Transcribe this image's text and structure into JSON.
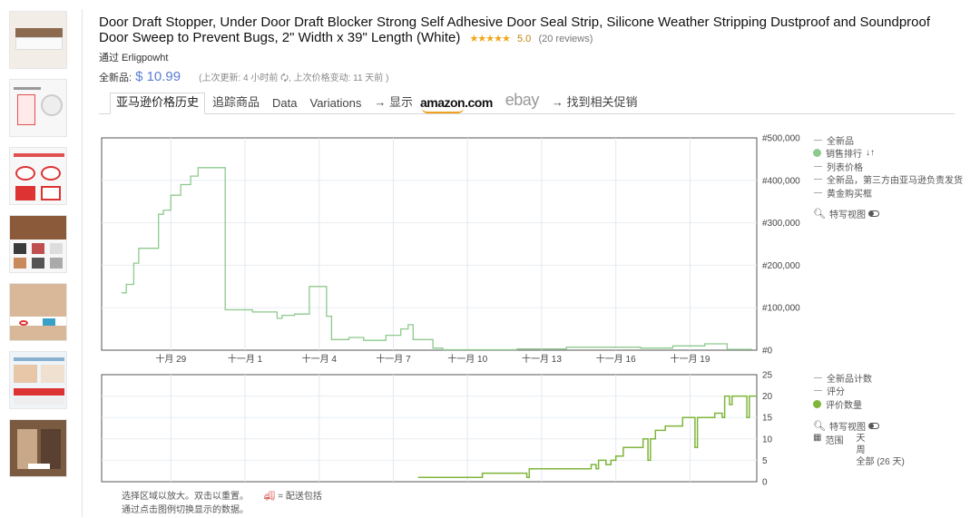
{
  "product": {
    "title": "Door Draft Stopper, Under Door Draft Blocker Strong Self Adhesive Door Seal Strip, Silicone Weather Stripping Dustproof and Soundproof Door Sweep to Prevent Bugs, 2\" Width x 39\" Length (White)",
    "stars": "★★★★★",
    "rating": "5.0",
    "reviews": "(20 reviews)",
    "seller": "通过 Erligpowht"
  },
  "price": {
    "label": "全新品:",
    "value": "$ 10.99",
    "update_info": "(上次更新:  4 小时前  🗘,  上次价格变动: 11 天前 )"
  },
  "tabs": [
    {
      "label": "亚马逊价格历史"
    },
    {
      "label": "追踪商品"
    },
    {
      "label": "Data"
    },
    {
      "label": "Variations"
    },
    {
      "label": "→ 显示"
    },
    {
      "label": "amazon.com"
    },
    {
      "label": "ebay"
    },
    {
      "label": "→ 找到相关促销"
    }
  ],
  "legend_top": {
    "items": [
      "全新品",
      "销售排行",
      "列表价格",
      "全新品，第三方由亚马逊负责发货",
      "黄金购买框"
    ],
    "special_view": "特写视图"
  },
  "legend_bottom": {
    "items": [
      "全新品计数",
      "评分",
      "评价数量"
    ],
    "special_view": "特写视图",
    "range_label": "范围",
    "range_options": [
      "天",
      "周",
      "全部 (26 天)"
    ]
  },
  "footnote": {
    "line1": "选择区域以放大。双击以重置。",
    "delivery": "= 配送包括",
    "line2": "通过点击图例切换显示的数据。"
  },
  "colors": {
    "sales_rank": "#8ec98e",
    "review_count": "#7fb53a",
    "price": "#5a7dd6"
  },
  "chart_data": [
    {
      "type": "line",
      "series_name": "销售排行",
      "x_ticks": [
        {
          "x": 2,
          "label": "十月 29"
        },
        {
          "x": 5,
          "label": "十一月 1"
        },
        {
          "x": 8,
          "label": "十一月 4"
        },
        {
          "x": 11,
          "label": "十一月 7"
        },
        {
          "x": 14,
          "label": "十一月 10"
        },
        {
          "x": 17,
          "label": "十一月 13"
        },
        {
          "x": 20,
          "label": "十一月 16"
        },
        {
          "x": 23,
          "label": "十一月 19"
        }
      ],
      "y_ticks": [
        "#500,000",
        "#400,000",
        "#300,000",
        "#200,000",
        "#100,000",
        "#0"
      ],
      "xlim": [
        -0.8,
        25.7
      ],
      "ylim": [
        0,
        500000
      ],
      "points": [
        [
          0,
          135000
        ],
        [
          0.2,
          135000
        ],
        [
          0.2,
          155000
        ],
        [
          0.5,
          155000
        ],
        [
          0.5,
          205000
        ],
        [
          0.7,
          205000
        ],
        [
          0.7,
          240000
        ],
        [
          1.5,
          240000
        ],
        [
          1.5,
          320000
        ],
        [
          1.7,
          320000
        ],
        [
          1.7,
          330000
        ],
        [
          2,
          330000
        ],
        [
          2,
          365000
        ],
        [
          2.4,
          365000
        ],
        [
          2.4,
          390000
        ],
        [
          2.8,
          390000
        ],
        [
          2.8,
          410000
        ],
        [
          3.1,
          410000
        ],
        [
          3.1,
          430000
        ],
        [
          4.2,
          430000
        ],
        [
          4.2,
          95000
        ],
        [
          5.3,
          95000
        ],
        [
          5.3,
          90000
        ],
        [
          6.3,
          90000
        ],
        [
          6.3,
          75000
        ],
        [
          6.5,
          75000
        ],
        [
          6.5,
          82000
        ],
        [
          7,
          82000
        ],
        [
          7,
          85000
        ],
        [
          7.6,
          85000
        ],
        [
          7.6,
          150000
        ],
        [
          8.3,
          150000
        ],
        [
          8.3,
          80000
        ],
        [
          8.5,
          80000
        ],
        [
          8.5,
          25000
        ],
        [
          9.2,
          25000
        ],
        [
          9.2,
          30000
        ],
        [
          9.8,
          30000
        ],
        [
          9.8,
          23000
        ],
        [
          10.7,
          23000
        ],
        [
          10.7,
          35000
        ],
        [
          11.3,
          35000
        ],
        [
          11.3,
          50000
        ],
        [
          11.6,
          50000
        ],
        [
          11.6,
          60000
        ],
        [
          11.8,
          60000
        ],
        [
          11.8,
          25000
        ],
        [
          12.6,
          25000
        ],
        [
          12.6,
          5000
        ],
        [
          13,
          5000
        ],
        [
          13,
          1000
        ],
        [
          16,
          1000
        ],
        [
          16,
          3000
        ],
        [
          18,
          3000
        ],
        [
          18,
          7000
        ],
        [
          21,
          7000
        ],
        [
          21,
          5000
        ],
        [
          22.3,
          5000
        ],
        [
          22.3,
          10000
        ],
        [
          23.6,
          10000
        ],
        [
          23.6,
          15000
        ],
        [
          24.5,
          15000
        ],
        [
          24.5,
          2000
        ],
        [
          25.5,
          2000
        ]
      ]
    },
    {
      "type": "line",
      "series_name": "评价数量",
      "y_ticks": [
        25,
        20,
        15,
        10,
        5,
        0
      ],
      "xlim": [
        -0.8,
        25.7
      ],
      "ylim": [
        0,
        25
      ],
      "points": [
        [
          12,
          1
        ],
        [
          14.6,
          1
        ],
        [
          14.6,
          2
        ],
        [
          16.4,
          2
        ],
        [
          16.4,
          1
        ],
        [
          16.5,
          1
        ],
        [
          16.5,
          3
        ],
        [
          19,
          3
        ],
        [
          19,
          4
        ],
        [
          19.2,
          4
        ],
        [
          19.2,
          3
        ],
        [
          19.3,
          3
        ],
        [
          19.3,
          5
        ],
        [
          19.6,
          5
        ],
        [
          19.6,
          4
        ],
        [
          19.8,
          4
        ],
        [
          19.8,
          5
        ],
        [
          20,
          5
        ],
        [
          20,
          6
        ],
        [
          20.3,
          6
        ],
        [
          20.3,
          8
        ],
        [
          21.1,
          8
        ],
        [
          21.1,
          10
        ],
        [
          21.3,
          10
        ],
        [
          21.3,
          5
        ],
        [
          21.4,
          5
        ],
        [
          21.4,
          10
        ],
        [
          21.6,
          10
        ],
        [
          21.6,
          12
        ],
        [
          22,
          12
        ],
        [
          22,
          13
        ],
        [
          22.7,
          13
        ],
        [
          22.7,
          15
        ],
        [
          23.2,
          15
        ],
        [
          23.2,
          8
        ],
        [
          23.3,
          8
        ],
        [
          23.3,
          15
        ],
        [
          24,
          15
        ],
        [
          24,
          16
        ],
        [
          24.3,
          16
        ],
        [
          24.3,
          15
        ],
        [
          24.4,
          15
        ],
        [
          24.4,
          20
        ],
        [
          24.6,
          20
        ],
        [
          24.6,
          18
        ],
        [
          24.7,
          18
        ],
        [
          24.7,
          20
        ],
        [
          25.3,
          20
        ],
        [
          25.3,
          15
        ],
        [
          25.4,
          15
        ],
        [
          25.4,
          20
        ],
        [
          25.7,
          20
        ]
      ]
    }
  ]
}
